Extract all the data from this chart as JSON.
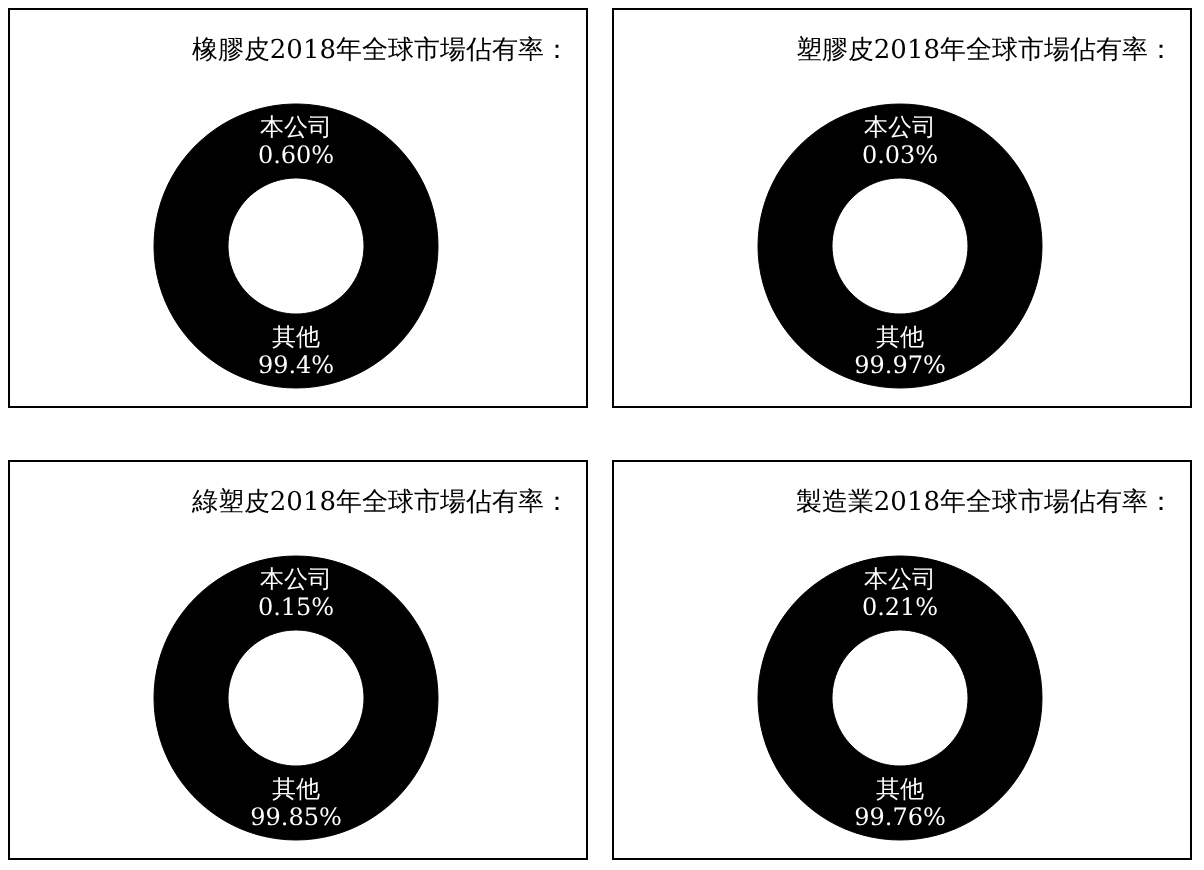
{
  "chart_data": [
    {
      "type": "donut",
      "title": "橡膠皮2018年全球市場佔有率：",
      "categories": [
        "本公司",
        "其他"
      ],
      "values": [
        0.6,
        99.4
      ],
      "value_labels": [
        "0.60%",
        "99.4%"
      ],
      "colors": [
        "#000000",
        "#000000"
      ]
    },
    {
      "type": "donut",
      "title": "塑膠皮2018年全球市場佔有率：",
      "categories": [
        "本公司",
        "其他"
      ],
      "values": [
        0.03,
        99.97
      ],
      "value_labels": [
        "0.03%",
        "99.97%"
      ],
      "colors": [
        "#000000",
        "#000000"
      ]
    },
    {
      "type": "donut",
      "title": "綠塑皮2018年全球市場佔有率：",
      "categories": [
        "本公司",
        "其他"
      ],
      "values": [
        0.15,
        99.85
      ],
      "value_labels": [
        "0.15%",
        "99.85%"
      ],
      "colors": [
        "#000000",
        "#000000"
      ]
    },
    {
      "type": "donut",
      "title": "製造業2018年全球市場佔有率：",
      "categories": [
        "本公司",
        "其他"
      ],
      "values": [
        0.21,
        99.76
      ],
      "value_labels": [
        "0.21%",
        "99.76%"
      ],
      "colors": [
        "#000000",
        "#000000"
      ]
    }
  ]
}
